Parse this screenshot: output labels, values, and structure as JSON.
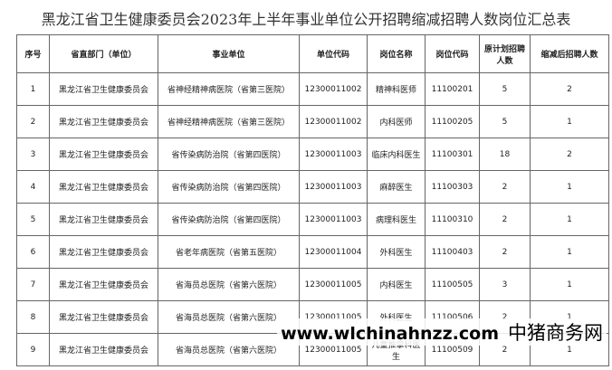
{
  "title": "黑龙江省卫生健康委员会2023年上半年事业单位公开招聘缩减招聘人数岗位汇总表",
  "table": {
    "headers": [
      "序号",
      "省直部门（单位）",
      "事业单位",
      "单位代码",
      "岗位名称",
      "岗位代码",
      "原计划招聘人数",
      "缩减后招聘人数"
    ],
    "rows": [
      [
        "1",
        "黑龙江省卫生健康委员会",
        "省神经精神病医院（省第三医院）",
        "12300011002",
        "精神科医师",
        "11100201",
        "5",
        "2"
      ],
      [
        "2",
        "黑龙江省卫生健康委员会",
        "省神经精神病医院（省第三医院）",
        "12300011002",
        "内科医师",
        "11100205",
        "5",
        "1"
      ],
      [
        "3",
        "黑龙江省卫生健康委员会",
        "省传染病防治院（省第四医院）",
        "12300011003",
        "临床内科医生",
        "11100301",
        "18",
        "2"
      ],
      [
        "4",
        "黑龙江省卫生健康委员会",
        "省传染病防治院（省第四医院）",
        "12300011003",
        "麻醉医生",
        "11100303",
        "2",
        "1"
      ],
      [
        "5",
        "黑龙江省卫生健康委员会",
        "省传染病防治院（省第四医院）",
        "12300011003",
        "病理科医生",
        "11100310",
        "2",
        "1"
      ],
      [
        "6",
        "黑龙江省卫生健康委员会",
        "省老年病医院（省第五医院）",
        "12300011004",
        "外科医生",
        "11100403",
        "2",
        "1"
      ],
      [
        "7",
        "黑龙江省卫生健康委员会",
        "省海员总医院（省第六医院）",
        "12300011005",
        "内科医生",
        "11100505",
        "3",
        "1"
      ],
      [
        "8",
        "黑龙江省卫生健康委员会",
        "省海员总医院（省第六医院）",
        "12300011005",
        "外科医生",
        "11100506",
        "2",
        "1"
      ],
      [
        "9",
        "黑龙江省卫生健康委员会",
        "省海员总医院（省第六医院）",
        "12300011005",
        "儿童推拿科医生",
        "11100509",
        "2",
        "1"
      ]
    ]
  },
  "watermark": {
    "url": "www.wlchinahnzz.com",
    "brand": "中猪商务网"
  }
}
